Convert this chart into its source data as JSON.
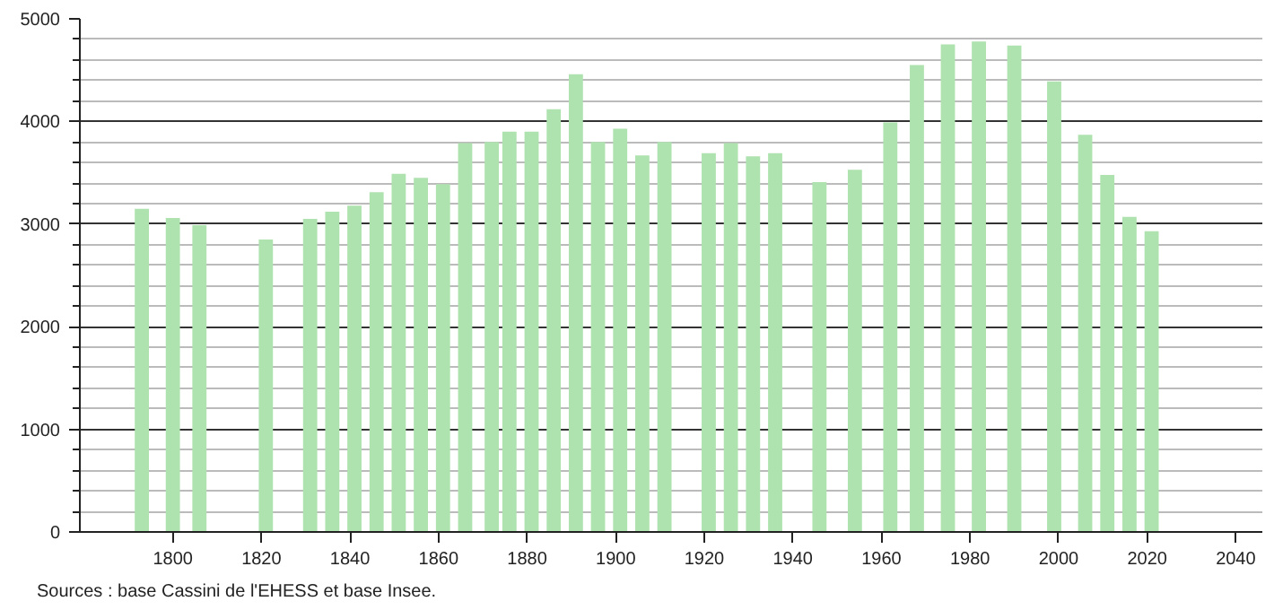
{
  "chart_data": {
    "type": "bar",
    "x": [
      1793,
      1800,
      1806,
      1821,
      1831,
      1836,
      1841,
      1846,
      1851,
      1856,
      1861,
      1866,
      1872,
      1876,
      1881,
      1886,
      1891,
      1896,
      1901,
      1906,
      1911,
      1921,
      1926,
      1931,
      1936,
      1946,
      1954,
      1962,
      1968,
      1975,
      1982,
      1990,
      1999,
      2006,
      2011,
      2016,
      2021
    ],
    "values": [
      3150,
      3060,
      2990,
      2850,
      3050,
      3120,
      3180,
      3310,
      3490,
      3450,
      3390,
      3790,
      3800,
      3900,
      3900,
      4120,
      4460,
      3800,
      3930,
      3670,
      3800,
      3690,
      3790,
      3660,
      3690,
      3410,
      3530,
      3990,
      4550,
      4750,
      4780,
      4740,
      4390,
      3870,
      3480,
      3070,
      2930
    ],
    "color": "#aee2ae",
    "xlim": [
      1779,
      2046
    ],
    "xticks": [
      1800,
      1820,
      1840,
      1860,
      1880,
      1900,
      1920,
      1940,
      1960,
      1980,
      2000,
      2020,
      2040
    ],
    "ylim": [
      0,
      5000
    ],
    "yticks": [
      0,
      1000,
      2000,
      3000,
      4000,
      5000
    ],
    "grid": "y",
    "annotations": [
      "Sources : base Cassini de l'EHESS et base Insee."
    ]
  }
}
